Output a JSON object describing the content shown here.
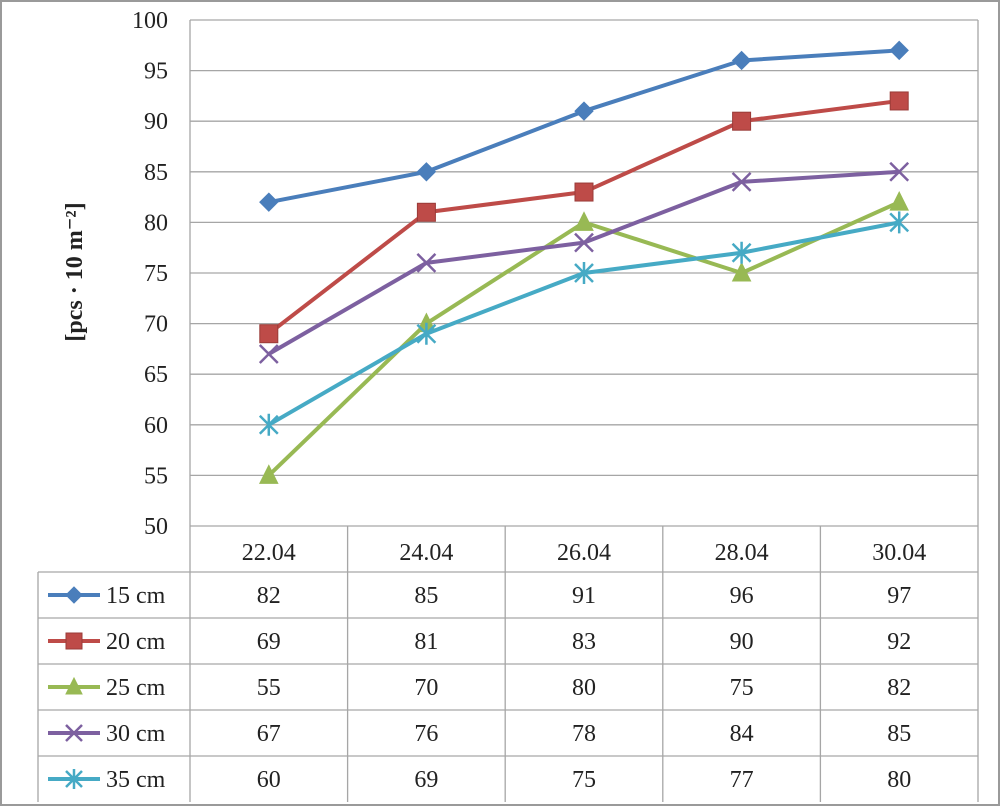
{
  "chart_data": {
    "type": "line",
    "ylabel": "[pcs · 10 m⁻²]",
    "ylim": [
      50,
      100
    ],
    "yticks": [
      50,
      55,
      60,
      65,
      70,
      75,
      80,
      85,
      90,
      95,
      100
    ],
    "grid": true,
    "legend": "data-table",
    "categories": [
      "22.04",
      "24.04",
      "26.04",
      "28.04",
      "30.04"
    ],
    "series": [
      {
        "name": "15 cm",
        "color": "#4a7ebb",
        "marker": "diamond",
        "values": [
          82,
          85,
          91,
          96,
          97
        ],
        "table_values": [
          "82",
          "85",
          "91",
          "96",
          "97"
        ]
      },
      {
        "name": "20 cm",
        "color": "#be4b48",
        "marker": "square",
        "values": [
          69,
          81,
          83,
          90,
          92
        ],
        "table_values": [
          "69",
          "81",
          "83",
          "90",
          "92"
        ]
      },
      {
        "name": "25 cm",
        "color": "#98b954",
        "marker": "triangle",
        "values": [
          55,
          70,
          80,
          75,
          82
        ],
        "table_values": [
          "55",
          "70",
          "80",
          "75",
          "82"
        ]
      },
      {
        "name": "30 cm",
        "color": "#7d60a0",
        "marker": "x",
        "values": [
          67,
          76,
          78,
          84,
          85
        ],
        "table_values": [
          "67",
          "76",
          "78",
          "84",
          "85"
        ]
      },
      {
        "name": "35 cm",
        "color": "#46aac5",
        "marker": "star",
        "values": [
          60,
          69,
          75,
          77,
          80
        ],
        "table_values": [
          "60",
          "69",
          "75",
          "77",
          "80"
        ]
      }
    ]
  }
}
